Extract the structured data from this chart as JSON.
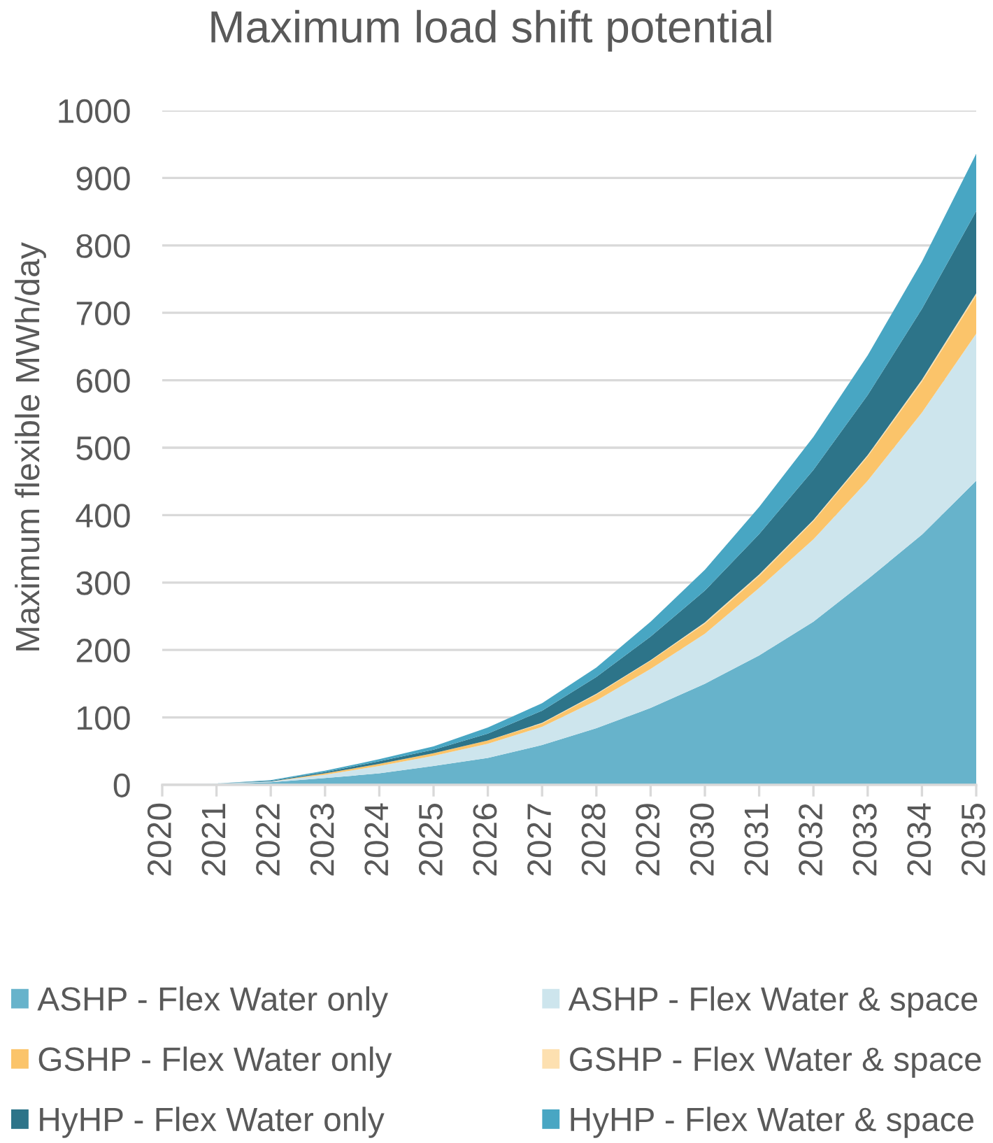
{
  "chart_data": {
    "type": "area",
    "title": "Maximum load shift potential",
    "ylabel": "Maximum flexible MWh/day",
    "categories": [
      "2020",
      "2021",
      "2022",
      "2023",
      "2024",
      "2025",
      "2026",
      "2027",
      "2028",
      "2029",
      "2030",
      "2031",
      "2032",
      "2033",
      "2034",
      "2035"
    ],
    "stacked": true,
    "ylim": [
      0,
      1000
    ],
    "yticks": [
      0,
      100,
      200,
      300,
      400,
      500,
      600,
      700,
      800,
      900,
      1000
    ],
    "grid": "y",
    "legend": "bottom",
    "series": [
      {
        "name": "ASHP - Flex Water only",
        "color": "#67b3cb",
        "values": [
          0,
          1,
          4,
          10,
          17,
          28,
          40,
          59,
          84,
          114,
          150,
          192,
          242,
          305,
          371,
          451
        ]
      },
      {
        "name": "ASHP - Flex Water & space",
        "color": "#cde5ed",
        "values": [
          0,
          1,
          1,
          5,
          11,
          15,
          21,
          27,
          41,
          58,
          74,
          100,
          122,
          146,
          181,
          218
        ]
      },
      {
        "name": "GSHP - Flex Water only",
        "color": "#fbc46a",
        "values": [
          0,
          0,
          0,
          2,
          3,
          4,
          5,
          5,
          9,
          12,
          15,
          18,
          27,
          36,
          46,
          57
        ]
      },
      {
        "name": "GSHP - Flex Water & space",
        "color": "#fde0b0",
        "values": [
          0,
          0,
          0,
          0,
          0,
          0,
          0,
          1,
          1,
          1,
          2,
          2,
          2,
          2,
          3,
          3
        ]
      },
      {
        "name": "HyHP - Flex Water only",
        "color": "#2d7489",
        "values": [
          0,
          0,
          1,
          2,
          4,
          5,
          10,
          18,
          25,
          35,
          47,
          60,
          74,
          89,
          105,
          122
        ]
      },
      {
        "name": "HyHP - Flex Water & space",
        "color": "#48a6c3",
        "values": [
          0,
          0,
          1,
          2,
          3,
          5,
          9,
          11,
          14,
          22,
          31,
          40,
          49,
          59,
          70,
          85
        ]
      }
    ]
  }
}
